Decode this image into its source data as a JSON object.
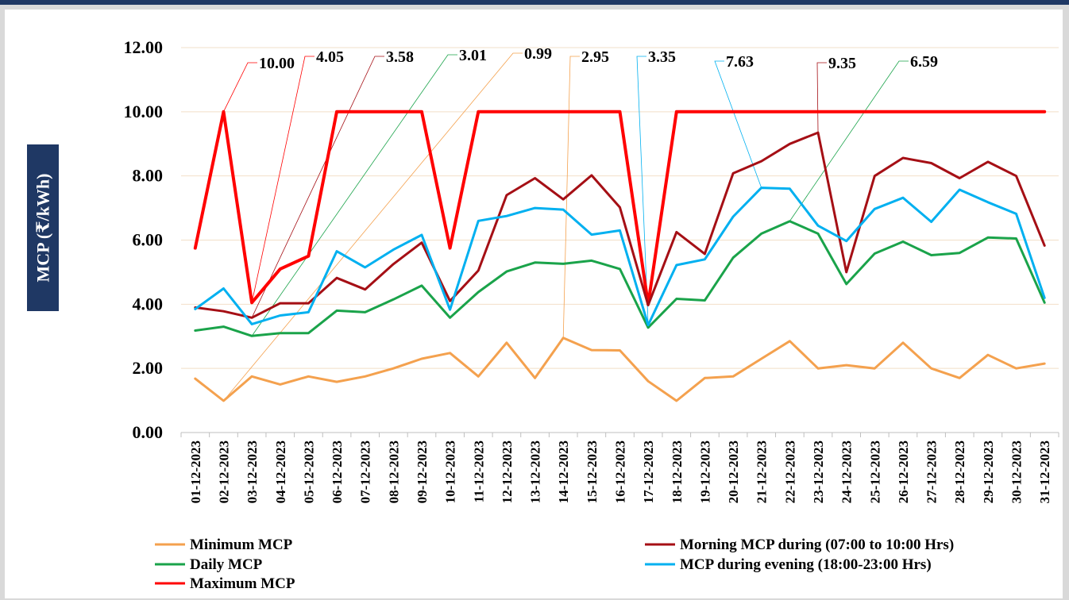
{
  "chart_data": {
    "type": "line",
    "title": "",
    "ylabel": "MCP (₹/kWh)",
    "xlabel": "",
    "ylim": [
      0,
      12
    ],
    "yticks": [
      "0.00",
      "2.00",
      "4.00",
      "6.00",
      "8.00",
      "10.00",
      "12.00"
    ],
    "grid": true,
    "legend_position": "bottom",
    "categories": [
      "01-12-2023",
      "02-12-2023",
      "03-12-2023",
      "04-12-2023",
      "05-12-2023",
      "06-12-2023",
      "07-12-2023",
      "08-12-2023",
      "09-12-2023",
      "10-12-2023",
      "11-12-2023",
      "12-12-2023",
      "13-12-2023",
      "14-12-2023",
      "15-12-2023",
      "16-12-2023",
      "17-12-2023",
      "18-12-2023",
      "19-12-2023",
      "20-12-2023",
      "21-12-2023",
      "22-12-2023",
      "23-12-2023",
      "24-12-2023",
      "25-12-2023",
      "26-12-2023",
      "27-12-2023",
      "28-12-2023",
      "29-12-2023",
      "30-12-2023",
      "31-12-2023"
    ],
    "series": [
      {
        "name": "Minimum MCP",
        "color": "#f4a14e",
        "width": 3,
        "values": [
          1.68,
          0.99,
          1.75,
          1.5,
          1.75,
          1.58,
          1.75,
          2.0,
          2.3,
          2.48,
          1.75,
          2.8,
          1.7,
          2.95,
          2.57,
          2.56,
          1.6,
          0.99,
          1.7,
          1.75,
          2.3,
          2.85,
          2.0,
          2.1,
          2.0,
          2.8,
          2.0,
          1.7,
          2.42,
          2.0,
          2.15
        ]
      },
      {
        "name": "Daily MCP",
        "color": "#1aa34a",
        "width": 3,
        "values": [
          3.18,
          3.3,
          3.01,
          3.1,
          3.1,
          3.8,
          3.75,
          4.15,
          4.58,
          3.58,
          4.38,
          5.02,
          5.3,
          5.26,
          5.36,
          5.1,
          3.27,
          4.17,
          4.12,
          5.45,
          6.2,
          6.59,
          6.2,
          4.63,
          5.58,
          5.95,
          5.53,
          5.6,
          6.08,
          6.05,
          4.05
        ]
      },
      {
        "name": "Maximum MCP",
        "color": "#ff0000",
        "width": 4,
        "values": [
          5.75,
          10.0,
          4.05,
          5.1,
          5.5,
          10.0,
          10.0,
          10.0,
          10.0,
          5.75,
          10.0,
          10.0,
          10.0,
          10.0,
          10.0,
          10.0,
          4.0,
          10.0,
          10.0,
          10.0,
          10.0,
          10.0,
          10.0,
          10.0,
          10.0,
          10.0,
          10.0,
          10.0,
          10.0,
          10.0,
          10.0
        ]
      },
      {
        "name": "Morning MCP  during (07:00 to 10:00 Hrs)",
        "color": "#a50f15",
        "width": 3,
        "values": [
          3.9,
          3.78,
          3.58,
          4.03,
          4.03,
          4.82,
          4.46,
          5.25,
          5.92,
          4.1,
          5.05,
          7.4,
          7.93,
          7.27,
          8.02,
          7.02,
          3.97,
          6.25,
          5.57,
          8.08,
          8.46,
          9.0,
          9.35,
          5.0,
          8.0,
          8.56,
          8.4,
          7.93,
          8.44,
          8.0,
          5.83
        ]
      },
      {
        "name": "MCP  during evening (18:00-23:00 Hrs)",
        "color": "#00b0f0",
        "width": 3,
        "values": [
          3.85,
          4.49,
          3.38,
          3.65,
          3.75,
          5.65,
          5.15,
          5.7,
          6.16,
          3.83,
          6.6,
          6.75,
          7.0,
          6.95,
          6.17,
          6.3,
          3.35,
          5.22,
          5.4,
          6.73,
          7.63,
          7.6,
          6.45,
          5.97,
          6.97,
          7.32,
          6.57,
          7.57,
          7.18,
          6.82,
          4.2
        ]
      }
    ],
    "annotations": [
      {
        "text": "10.00",
        "series": 2,
        "index": 1
      },
      {
        "text": "4.05",
        "series": 2,
        "index": 2
      },
      {
        "text": "3.58",
        "series": 3,
        "index": 2
      },
      {
        "text": "3.01",
        "series": 1,
        "index": 2
      },
      {
        "text": "0.99",
        "series": 0,
        "index": 1
      },
      {
        "text": "2.95",
        "series": 0,
        "index": 13
      },
      {
        "text": "3.35",
        "series": 4,
        "index": 16
      },
      {
        "text": "7.63",
        "series": 4,
        "index": 20
      },
      {
        "text": "9.35",
        "series": 3,
        "index": 22
      },
      {
        "text": "6.59",
        "series": 1,
        "index": 21
      }
    ]
  }
}
